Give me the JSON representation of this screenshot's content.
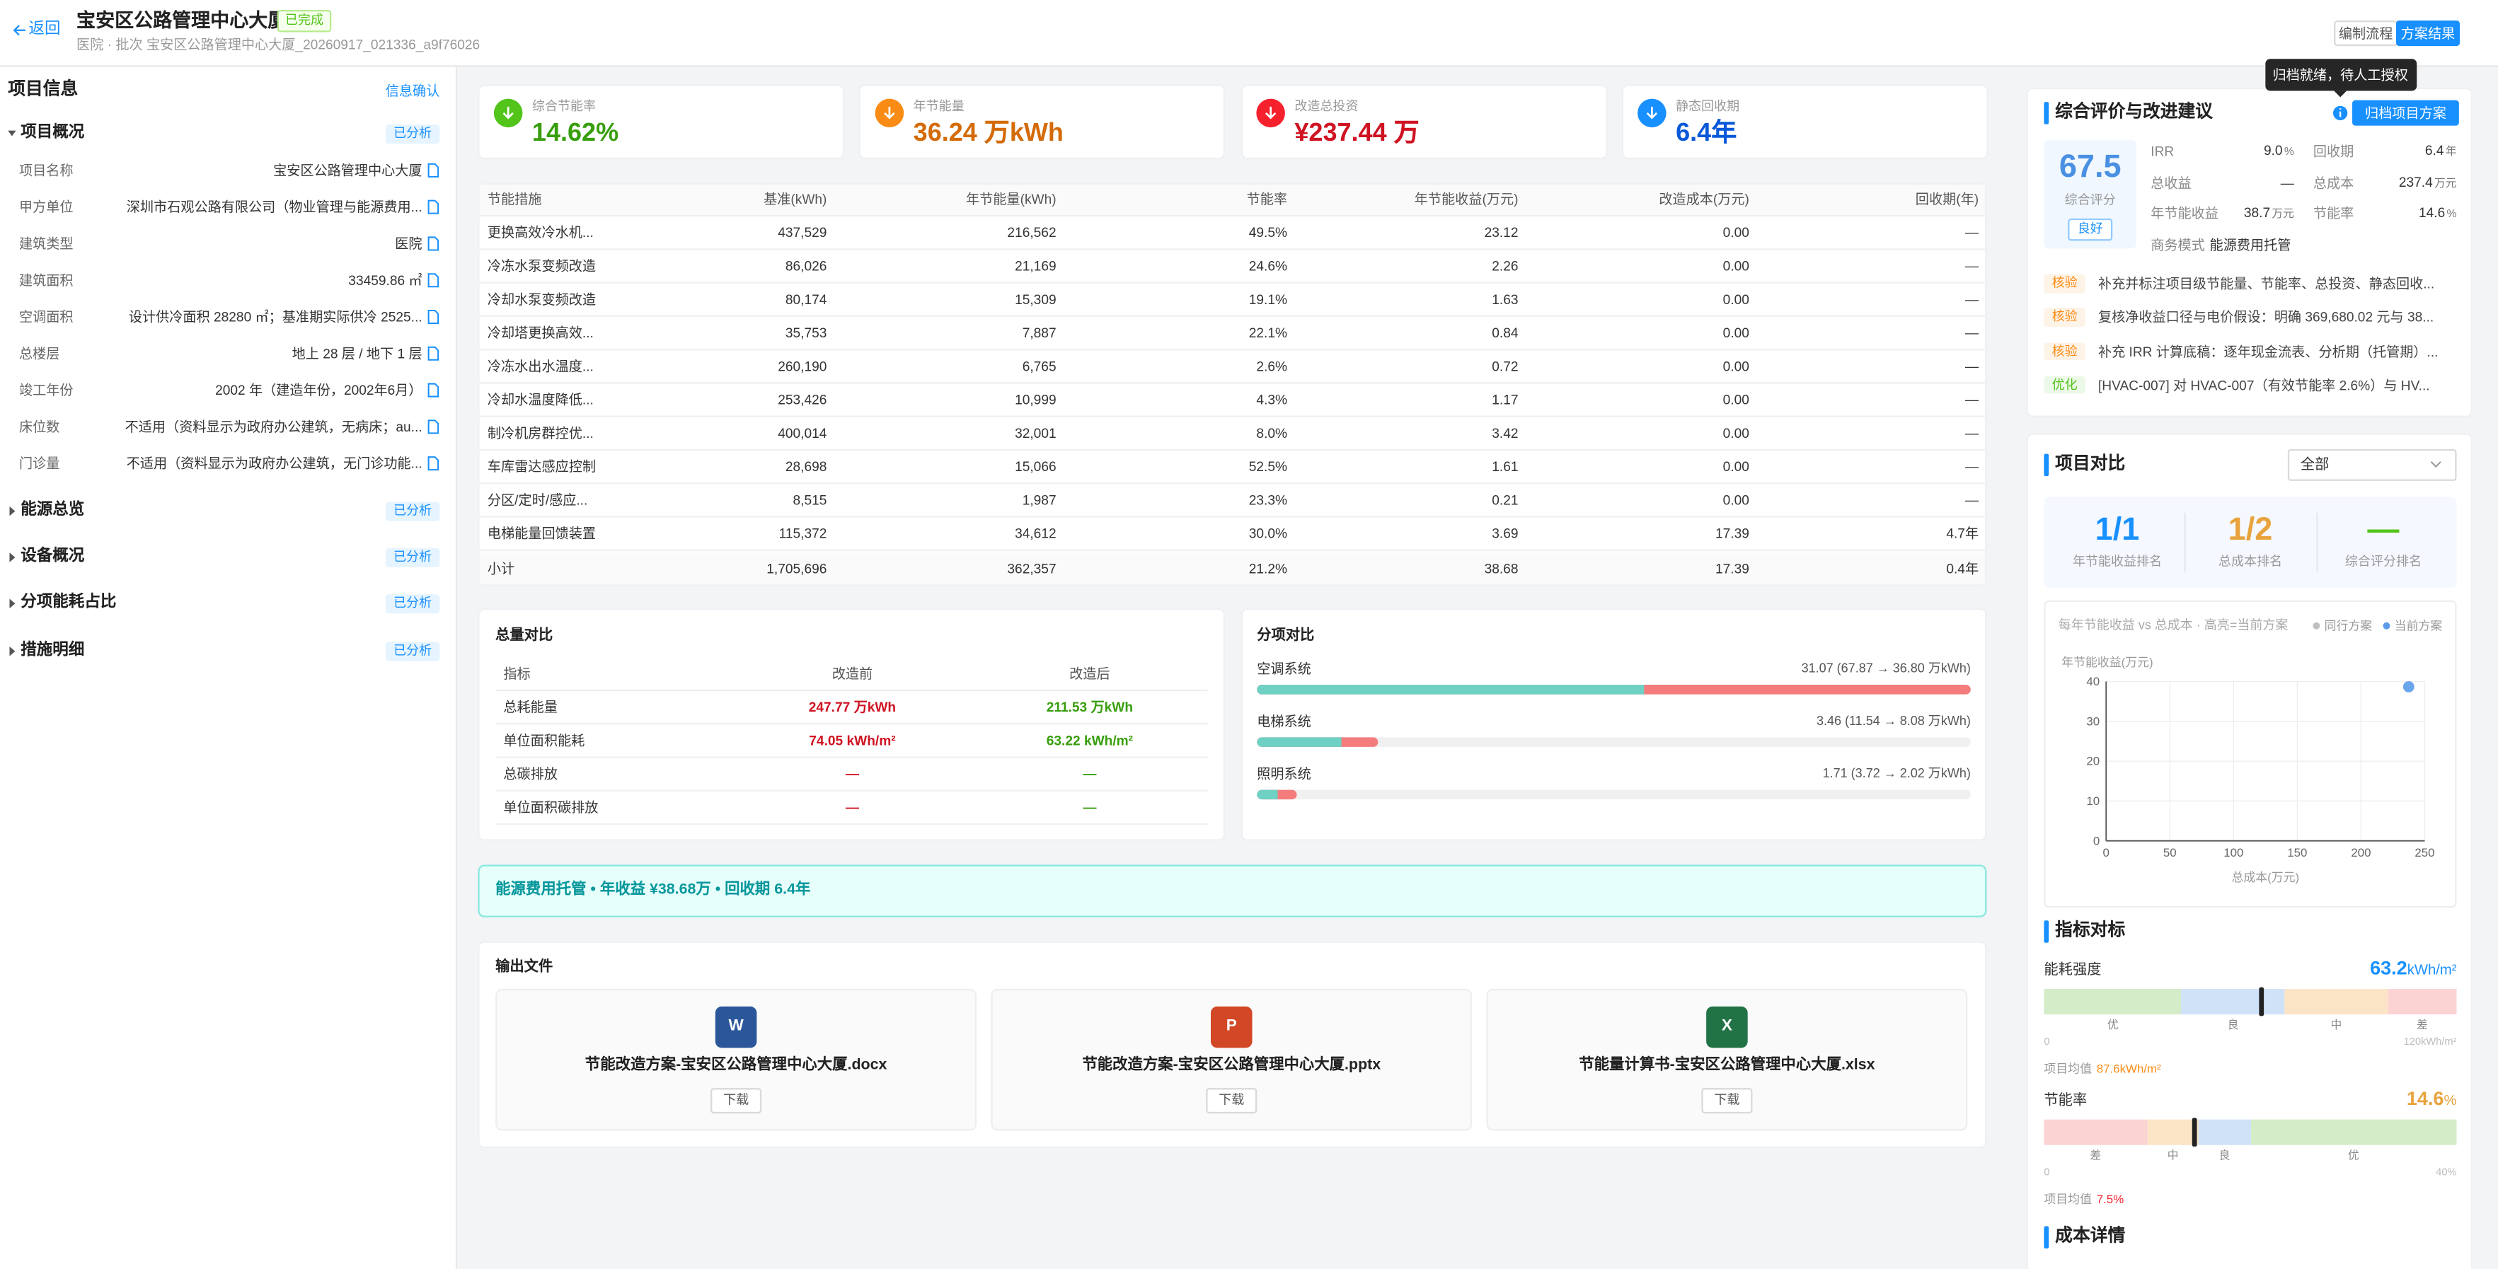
{
  "header": {
    "back": "返回",
    "title": "宝安区公路管理中心大厦",
    "status": "已完成",
    "subtitle": "医院 · 批次 宝安区公路管理中心大厦_20260917_021336_a9f76026",
    "tabs": [
      "编制流程",
      "方案结果"
    ]
  },
  "left_panel": {
    "title": "项目信息",
    "action": "信息确认",
    "sections": [
      {
        "name": "项目概况",
        "badge": "已分析",
        "fields": [
          {
            "label": "项目名称",
            "value": "宝安区公路管理中心大厦"
          },
          {
            "label": "甲方单位",
            "value": "深圳市石观公路有限公司（物业管理与能源费用..."
          },
          {
            "label": "建筑类型",
            "value": "医院"
          },
          {
            "label": "建筑面积",
            "value": "33459.86 ㎡"
          },
          {
            "label": "空调面积",
            "value": "设计供冷面积 28280 ㎡；基准期实际供冷 2525..."
          },
          {
            "label": "总楼层",
            "value": "地上 28 层 / 地下 1 层"
          },
          {
            "label": "竣工年份",
            "value": "2002 年（建造年份，2002年6月）"
          },
          {
            "label": "床位数",
            "value": "不适用（资料显示为政府办公建筑，无病床；au..."
          },
          {
            "label": "门诊量",
            "value": "不适用（资料显示为政府办公建筑，无门诊功能..."
          }
        ]
      },
      {
        "name": "能源总览",
        "badge": "已分析"
      },
      {
        "name": "设备概况",
        "badge": "已分析"
      },
      {
        "name": "分项能耗占比",
        "badge": "已分析"
      },
      {
        "name": "措施明细",
        "badge": "已分析"
      }
    ]
  },
  "kpis": [
    {
      "label": "综合节能率",
      "value": "14.62%",
      "color": "#389e0d",
      "icon_color": "#52c41a"
    },
    {
      "label": "年节能量",
      "value": "36.24 万kWh",
      "color": "#d46b08",
      "icon_color": "#fa8c16"
    },
    {
      "label": "改造总投资",
      "value": "¥237.44 万",
      "color": "#cf1322",
      "icon_color": "#f5222d"
    },
    {
      "label": "静态回收期",
      "value": "6.4年",
      "color": "#0958d9",
      "icon_color": "#1890ff"
    }
  ],
  "measures": {
    "headers": [
      "节能措施",
      "基准(kWh)",
      "年节能量(kWh)",
      "节能率",
      "年节能收益(万元)",
      "改造成本(万元)",
      "回收期(年)"
    ],
    "rows": [
      [
        "更换高效冷水机...",
        "437,529",
        "216,562",
        "49.5%",
        "23.12",
        "0.00",
        "—"
      ],
      [
        "冷冻水泵变频改造",
        "86,026",
        "21,169",
        "24.6%",
        "2.26",
        "0.00",
        "—"
      ],
      [
        "冷却水泵变频改造",
        "80,174",
        "15,309",
        "19.1%",
        "1.63",
        "0.00",
        "—"
      ],
      [
        "冷却塔更换高效...",
        "35,753",
        "7,887",
        "22.1%",
        "0.84",
        "0.00",
        "—"
      ],
      [
        "冷冻水出水温度...",
        "260,190",
        "6,765",
        "2.6%",
        "0.72",
        "0.00",
        "—"
      ],
      [
        "冷却水温度降低...",
        "253,426",
        "10,999",
        "4.3%",
        "1.17",
        "0.00",
        "—"
      ],
      [
        "制冷机房群控优...",
        "400,014",
        "32,001",
        "8.0%",
        "3.42",
        "0.00",
        "—"
      ],
      [
        "车库雷达感应控制",
        "28,698",
        "15,066",
        "52.5%",
        "1.61",
        "0.00",
        "—"
      ],
      [
        "分区/定时/感应...",
        "8,515",
        "1,987",
        "23.3%",
        "0.21",
        "0.00",
        "—"
      ],
      [
        "电梯能量回馈装置",
        "115,372",
        "34,612",
        "30.0%",
        "3.69",
        "17.39",
        "4.7年"
      ]
    ],
    "total": [
      "小计",
      "1,705,696",
      "362,357",
      "21.2%",
      "38.68",
      "17.39",
      "0.4年"
    ]
  },
  "total_compare": {
    "title": "总量对比",
    "headers": [
      "指标",
      "改造前",
      "改造后"
    ],
    "rows": [
      [
        "总耗能量",
        "247.77 万kWh",
        "211.53 万kWh"
      ],
      [
        "单位面积能耗",
        "74.05 kWh/m²",
        "63.22 kWh/m²"
      ],
      [
        "总碳排放",
        "—",
        "—"
      ],
      [
        "单位面积碳排放",
        "—",
        "—"
      ]
    ]
  },
  "item_compare": {
    "title": "分项对比",
    "items": [
      {
        "name": "空调系统",
        "label": "31.07 (67.87 → 36.80 万kWh)",
        "before": 67.87,
        "after": 36.8
      },
      {
        "name": "电梯系统",
        "label": "3.46 (11.54 → 8.08 万kWh)",
        "before": 11.54,
        "after": 8.08
      },
      {
        "name": "照明系统",
        "label": "1.71 (3.72 → 2.02 万kWh)",
        "before": 3.72,
        "after": 2.02
      }
    ]
  },
  "banner": "能源费用托管 • 年收益 ¥38.68万 • 回收期 6.4年",
  "outputs": {
    "title": "输出文件",
    "files": [
      {
        "icon": "W",
        "color": "#2b579a",
        "name": "节能改造方案-宝安区公路管理中心大厦.docx",
        "button": "下载"
      },
      {
        "icon": "P",
        "color": "#d24726",
        "name": "节能改造方案-宝安区公路管理中心大厦.pptx",
        "button": "下载"
      },
      {
        "icon": "X",
        "color": "#217346",
        "name": "节能量计算书-宝安区公路管理中心大厦.xlsx",
        "button": "下载"
      }
    ]
  },
  "evaluation": {
    "tooltip": "归档就绪，待人工授权",
    "title": "综合评价与改进建议",
    "button": "归档项目方案",
    "score": 67.5,
    "score_label": "综合评分",
    "grade": "良好",
    "metrics": [
      {
        "label": "IRR",
        "value": "9.0",
        "unit": "%"
      },
      {
        "label": "回收期",
        "value": "6.4",
        "unit": "年"
      },
      {
        "label": "总收益",
        "value": "—"
      },
      {
        "label": "总成本",
        "value": "237.4",
        "unit": "万元"
      },
      {
        "label": "年节能收益",
        "value": "38.7",
        "unit": "万元"
      },
      {
        "label": "节能率",
        "value": "14.6",
        "unit": "%"
      }
    ],
    "business_label": "商务模式",
    "business_value": "能源费用托管",
    "suggestions": [
      {
        "tag": "核验",
        "color": "#fa8c16",
        "text": "补充并标注项目级节能量、节能率、总投资、静态回收..."
      },
      {
        "tag": "核验",
        "color": "#fa8c16",
        "text": "复核净收益口径与电价假设：明确 369,680.02 元与 38..."
      },
      {
        "tag": "核验",
        "color": "#fa8c16",
        "text": "补充 IRR 计算底稿：逐年现金流表、分析期（托管期）..."
      },
      {
        "tag": "优化",
        "color": "#52c41a",
        "text": "[HVAC-007] 对 HVAC-007（有效节能率 2.6%）与 HV..."
      }
    ]
  },
  "comparison": {
    "title": "项目对比",
    "select": "全部",
    "ranks": [
      {
        "value": "1/1",
        "label": "年节能收益排名",
        "color": "#1890ff"
      },
      {
        "value": "1/2",
        "label": "总成本排名",
        "color": "#e8a33d"
      },
      {
        "value": "—",
        "label": "综合评分排名",
        "color": "#52c41a"
      }
    ],
    "chart": {
      "type": "scatter",
      "title": "每年节能收益 vs 总成本 · 高亮=当前方案",
      "y_label": "年节能收益(万元)",
      "x_label": "总成本(万元)",
      "xlim": [
        0,
        250
      ],
      "xticks": [
        0,
        50,
        100,
        150,
        200,
        250
      ],
      "ylim": [
        0,
        40
      ],
      "yticks": [
        0,
        10,
        20,
        30,
        40
      ],
      "grid": true,
      "series": [
        {
          "name": "同行方案",
          "color": "#bfbfbf",
          "x": [],
          "y": []
        },
        {
          "name": "当前方案",
          "color": "#5b9bea",
          "x": [
            237.4
          ],
          "y": [
            38.7
          ]
        }
      ]
    }
  },
  "benchmark": {
    "title": "指标对标",
    "items": [
      {
        "name": "能耗强度",
        "value": 63.2,
        "unit": "kWh/m²",
        "color": "#1890ff",
        "xlim": [
          0,
          120
        ],
        "bands": [
          40,
          70,
          100
        ],
        "band_labels": [
          "优",
          "良",
          "中",
          "差"
        ],
        "band_colors": [
          "#d4ecc8",
          "#cfe2f8",
          "#fbe4c6",
          "#fbd3d3"
        ],
        "max_label": "120kWh/m²",
        "avg_label": "项目均值",
        "avg": 87.6,
        "avg_unit": "kWh/m²",
        "avg_color": "#fa8c16"
      },
      {
        "name": "节能率",
        "value": 14.6,
        "unit": "%",
        "color": "#e8a33d",
        "xlim": [
          0,
          40
        ],
        "bands": [
          10,
          15,
          20
        ],
        "band_labels": [
          "差",
          "中",
          "良",
          "优"
        ],
        "band_colors": [
          "#fbd3d3",
          "#fbe4c6",
          "#cfe2f8",
          "#d4ecc8"
        ],
        "max_label": "40%",
        "avg_label": "项目均值",
        "avg": 7.5,
        "avg_unit": "%",
        "avg_color": "#f5222d"
      }
    ]
  },
  "cost_title": "成本详情"
}
